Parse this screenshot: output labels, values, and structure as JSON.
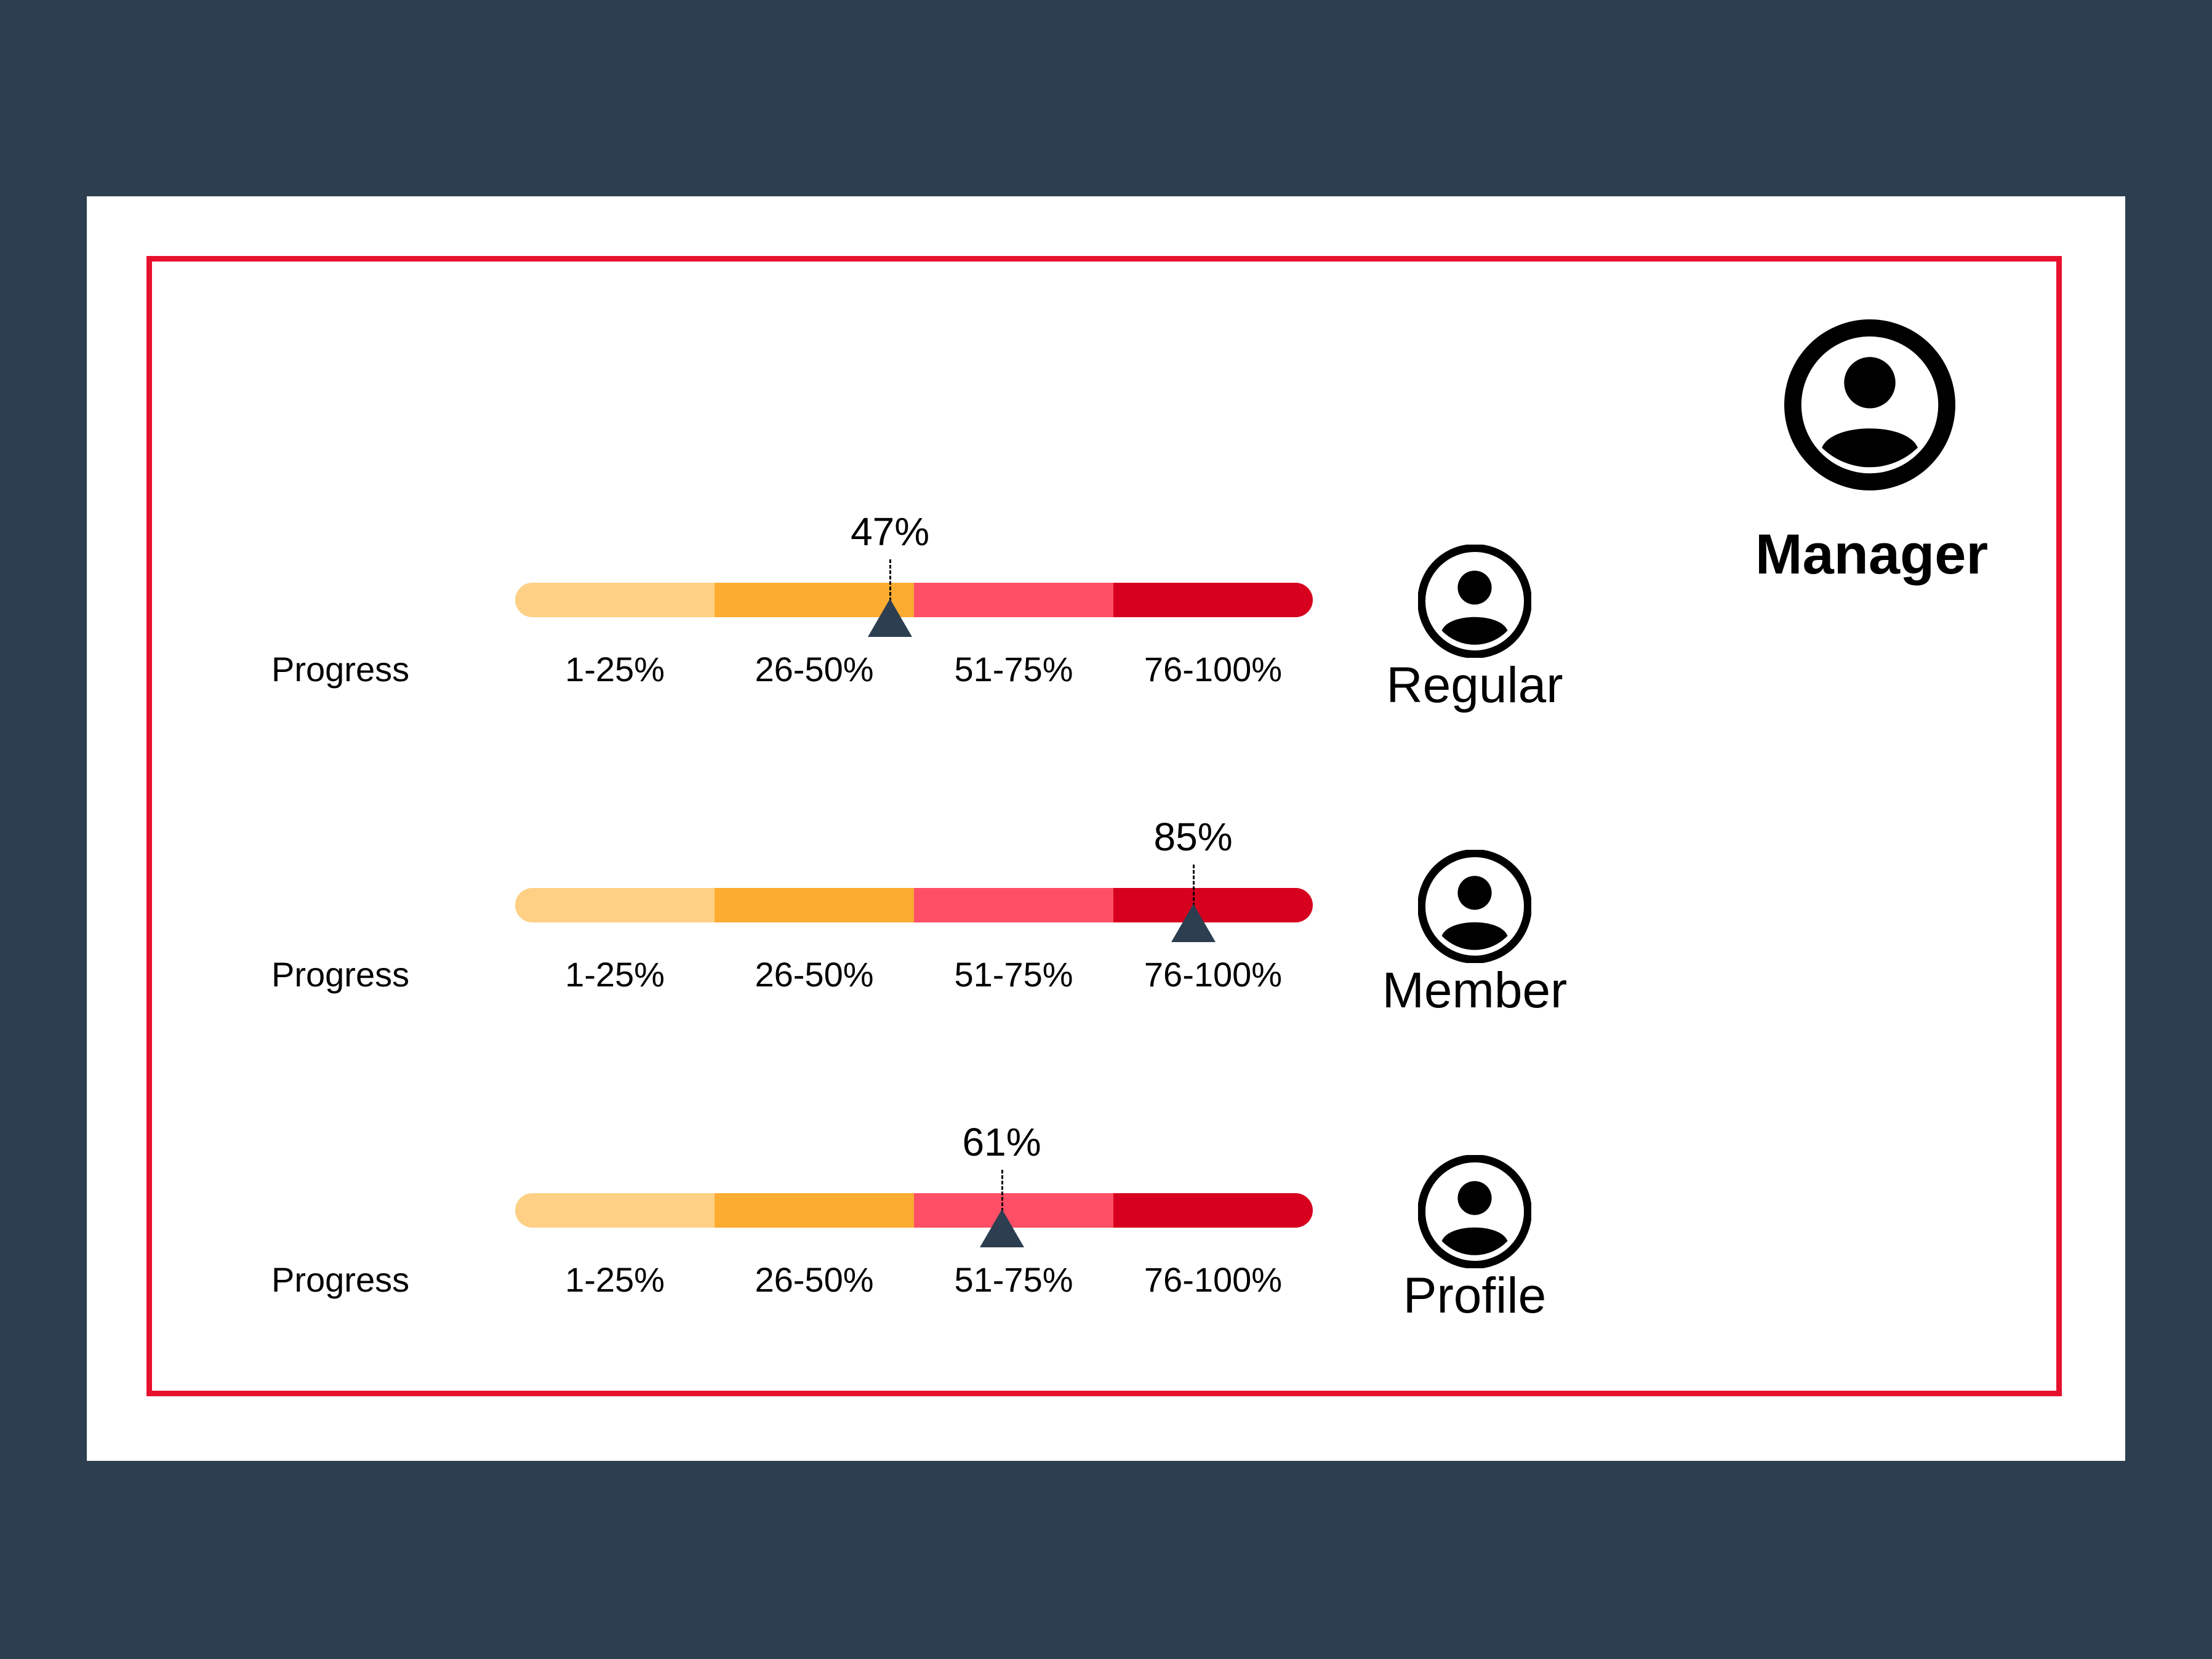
{
  "manager": {
    "label": "Manager",
    "icon": "account-circle-icon"
  },
  "segments": {
    "labels": [
      "1-25%",
      "26-50%",
      "51-75%",
      "76-100%"
    ],
    "colors": [
      "#fdd085",
      "#fcac30",
      "#ff4f67",
      "#d7001e"
    ]
  },
  "rows": [
    {
      "label": "Progress",
      "value": 47,
      "value_text": "47%",
      "role": "Regular",
      "icon": "account-circle-icon"
    },
    {
      "label": "Progress",
      "value": 85,
      "value_text": "85%",
      "role": "Member",
      "icon": "account-circle-icon"
    },
    {
      "label": "Progress",
      "value": 61,
      "value_text": "61%",
      "role": "Profile",
      "icon": "account-circle-icon"
    }
  ],
  "colors": {
    "background": "#2c3e50",
    "frame": "#e8112d",
    "marker": "#2c3e50"
  }
}
